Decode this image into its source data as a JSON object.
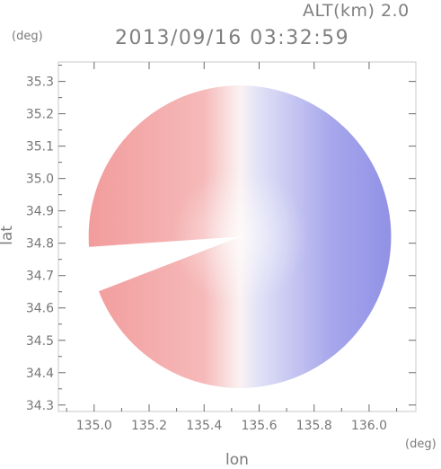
{
  "header": {
    "altitude_label": "ALT(km) 2.0",
    "datetime": "2013/09/16 03:32:59"
  },
  "chart_data": {
    "type": "heatmap",
    "title": "2013/09/16 03:32:59",
    "xlabel": "lon",
    "ylabel": "lat",
    "x_unit": "(deg)",
    "y_unit": "(deg)",
    "xlim": [
      134.87,
      136.17
    ],
    "ylim": [
      34.28,
      35.36
    ],
    "x_ticks": [
      135.0,
      135.2,
      135.4,
      135.6,
      135.8,
      136.0
    ],
    "y_ticks": [
      34.3,
      34.4,
      34.5,
      34.6,
      34.7,
      34.8,
      34.9,
      35.0,
      35.1,
      35.2,
      35.3
    ],
    "x_tick_labels": [
      "135.0",
      "135.2",
      "135.4",
      "135.6",
      "135.8",
      "136.0"
    ],
    "y_tick_labels": [
      "34.3",
      "34.4",
      "34.5",
      "34.6",
      "34.7",
      "34.8",
      "34.9",
      "35.0",
      "35.1",
      "35.2",
      "35.3"
    ],
    "radar_center": {
      "lon": 135.53,
      "lat": 34.82
    },
    "radar_radius_deg": 0.55,
    "colors": {
      "positive": "#f29595",
      "negative": "#8f8fe6",
      "neutral": "#ffffff"
    },
    "frame_color": "#c8c8c8",
    "tick_color": "#6a6a6a"
  }
}
